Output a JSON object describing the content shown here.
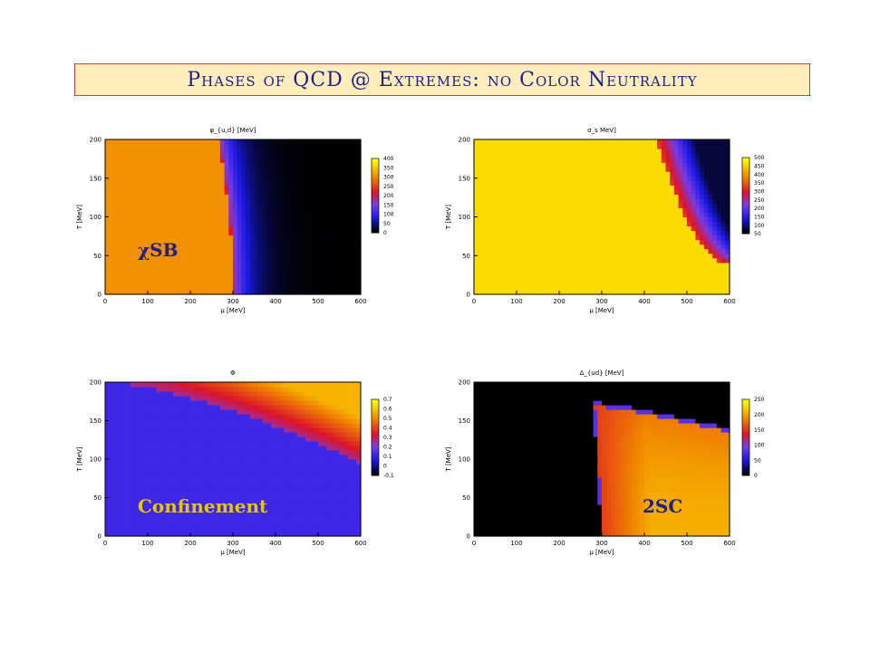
{
  "slide": {
    "title": "Phases of QCD @ Extremes: no Color Neutrality"
  },
  "chart_data": [
    {
      "type": "heatmap",
      "title": "φ_{u,d} [MeV]",
      "xlabel": "μ [MeV]",
      "ylabel": "T [MeV]",
      "xlim": [
        0,
        600
      ],
      "ylim": [
        0,
        200
      ],
      "xticks": [
        "0",
        "100",
        "200",
        "300",
        "400",
        "500",
        "600"
      ],
      "yticks": [
        "0",
        "50",
        "100",
        "150",
        "200"
      ],
      "colorbar_ticks": [
        "0",
        "50",
        "100",
        "150",
        "200",
        "250",
        "300",
        "350",
        "400"
      ],
      "colorbar_range": [
        0,
        400
      ],
      "annotation": "χSB",
      "annotation_color": "#1e1e8c",
      "regions": {
        "plateau_value": 370,
        "transition_mu_T0": 300,
        "transition_mu_T200": 265,
        "high_mu_value": 0
      }
    },
    {
      "type": "heatmap",
      "title": "σ_s MeV]",
      "xlabel": "μ [MeV]",
      "ylabel": "T [MeV]",
      "xlim": [
        0,
        600
      ],
      "ylim": [
        0,
        200
      ],
      "xticks": [
        "0",
        "100",
        "200",
        "300",
        "400",
        "500",
        "600"
      ],
      "yticks": [
        "0",
        "50",
        "100",
        "150",
        "200"
      ],
      "colorbar_ticks": [
        "50",
        "100",
        "150",
        "200",
        "250",
        "300",
        "350",
        "400",
        "450",
        "500"
      ],
      "colorbar_range": [
        50,
        500
      ],
      "annotation": "",
      "regions": {
        "plateau_value": 500,
        "transition_mu_T0": 600,
        "transition_mu_T200": 430,
        "high_mu_value": 50
      }
    },
    {
      "type": "heatmap",
      "title": "Φ",
      "xlabel": "μ [MeV]",
      "ylabel": "T [MeV]",
      "xlim": [
        0,
        600
      ],
      "ylim": [
        0,
        200
      ],
      "xticks": [
        "0",
        "100",
        "200",
        "300",
        "400",
        "500",
        "600"
      ],
      "yticks": [
        "0",
        "50",
        "100",
        "150",
        "200"
      ],
      "colorbar_ticks": [
        "-0.1",
        "0",
        "0.1",
        "0.2",
        "0.3",
        "0.4",
        "0.5",
        "0.6",
        "0.7"
      ],
      "colorbar_range": [
        -0.1,
        0.7
      ],
      "annotation": "Confinement",
      "annotation_color": "#e6c800",
      "regions": {
        "confined_value": 0.0,
        "deconfined_value": 0.6,
        "boundary_T_mu0": 200,
        "boundary_T_mu600": 95
      }
    },
    {
      "type": "heatmap",
      "title": "Δ_{ud} [MeV]",
      "xlabel": "μ [MeV]",
      "ylabel": "T [MeV]",
      "xlim": [
        0,
        600
      ],
      "ylim": [
        0,
        200
      ],
      "xticks": [
        "0",
        "100",
        "200",
        "300",
        "400",
        "500",
        "600"
      ],
      "yticks": [
        "0",
        "50",
        "100",
        "150",
        "200"
      ],
      "colorbar_ticks": [
        "0",
        "50",
        "100",
        "150",
        "200",
        "250"
      ],
      "colorbar_range": [
        0,
        250
      ],
      "annotation": "2SC",
      "annotation_color": "#1e1e8c",
      "regions": {
        "onset_mu_T0": 300,
        "onset_mu_T175": 280,
        "Tc_mu280": 175,
        "Tc_mu600": 140,
        "peak_value": 190
      }
    }
  ]
}
